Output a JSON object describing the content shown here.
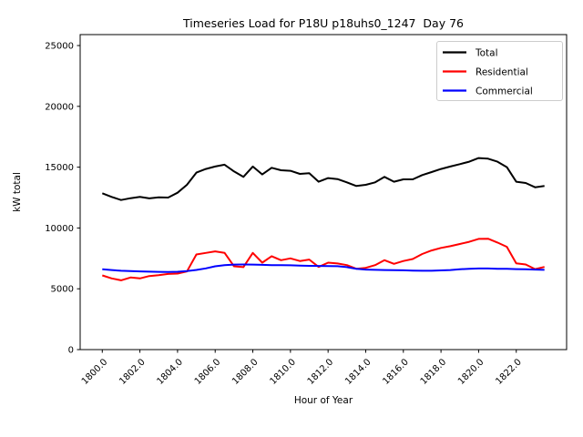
{
  "title": "Timeseries Load for P18U p18uhs0_1247  Day 76",
  "chart_data": {
    "type": "line",
    "title": "Timeseries Load for P18U p18uhs0_1247  Day 76",
    "xlabel": "Hour of Year",
    "ylabel": "kW total",
    "xlim": [
      1798.825,
      1824.675
    ],
    "ylim": [
      0,
      25900
    ],
    "grid": false,
    "xtick_values": [
      1800,
      1802,
      1804,
      1806,
      1808,
      1810,
      1812,
      1814,
      1816,
      1818,
      1820,
      1822
    ],
    "xtick_labels": [
      "1800.0",
      "1802.0",
      "1804.0",
      "1806.0",
      "1808.0",
      "1810.0",
      "1812.0",
      "1814.0",
      "1816.0",
      "1818.0",
      "1820.0",
      "1822.0"
    ],
    "ytick_values": [
      0,
      5000,
      10000,
      15000,
      20000,
      25000
    ],
    "ytick_labels": [
      "0",
      "5000",
      "10000",
      "15000",
      "20000",
      "25000"
    ],
    "legend": {
      "position": "upper right"
    },
    "x": [
      1800.0,
      1800.5,
      1801.0,
      1801.5,
      1802.0,
      1802.5,
      1803.0,
      1803.5,
      1804.0,
      1804.5,
      1805.0,
      1805.5,
      1806.0,
      1806.5,
      1807.0,
      1807.5,
      1808.0,
      1808.5,
      1809.0,
      1809.5,
      1810.0,
      1810.5,
      1811.0,
      1811.5,
      1812.0,
      1812.5,
      1813.0,
      1813.5,
      1814.0,
      1814.5,
      1815.0,
      1815.5,
      1816.0,
      1816.5,
      1817.0,
      1817.5,
      1818.0,
      1818.5,
      1819.0,
      1819.5,
      1820.0,
      1820.5,
      1821.0,
      1821.5,
      1822.0,
      1822.5,
      1823.0,
      1823.5
    ],
    "series": [
      {
        "name": "Total",
        "color": "#000000",
        "values": [
          12850,
          12550,
          12300,
          12450,
          12550,
          12430,
          12520,
          12500,
          12900,
          13550,
          14550,
          14850,
          15050,
          15200,
          14650,
          14200,
          15050,
          14400,
          14950,
          14750,
          14700,
          14450,
          14500,
          13800,
          14100,
          14020,
          13750,
          13450,
          13550,
          13750,
          14200,
          13800,
          14000,
          14000,
          14350,
          14600,
          14850,
          15050,
          15250,
          15450,
          15750,
          15700,
          15450,
          15000,
          13800,
          13700,
          13350,
          13450
        ]
      },
      {
        "name": "Residential",
        "color": "#ff0000",
        "values": [
          6100,
          5850,
          5700,
          5930,
          5850,
          6050,
          6120,
          6220,
          6250,
          6420,
          7820,
          7950,
          8080,
          7960,
          6850,
          6780,
          7950,
          7150,
          7680,
          7350,
          7500,
          7280,
          7400,
          6800,
          7150,
          7080,
          6950,
          6650,
          6720,
          6950,
          7350,
          7050,
          7280,
          7450,
          7860,
          8150,
          8360,
          8500,
          8680,
          8860,
          9100,
          9120,
          8800,
          8450,
          7100,
          7000,
          6620,
          6800
        ]
      },
      {
        "name": "Commercial",
        "color": "#0000ff",
        "values": [
          6600,
          6540,
          6480,
          6450,
          6430,
          6410,
          6390,
          6380,
          6400,
          6450,
          6550,
          6680,
          6850,
          6950,
          6990,
          7000,
          6990,
          6970,
          6950,
          6940,
          6930,
          6910,
          6890,
          6880,
          6870,
          6860,
          6780,
          6640,
          6580,
          6560,
          6540,
          6530,
          6520,
          6500,
          6480,
          6480,
          6510,
          6540,
          6600,
          6650,
          6670,
          6670,
          6650,
          6640,
          6620,
          6600,
          6580,
          6560
        ]
      }
    ]
  }
}
